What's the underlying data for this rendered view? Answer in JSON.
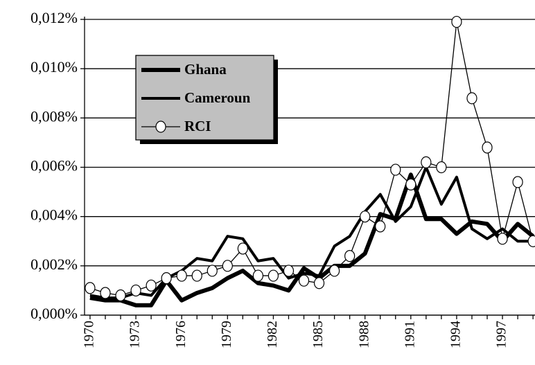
{
  "chart_data": {
    "type": "line",
    "x": [
      1970,
      1971,
      1972,
      1973,
      1974,
      1975,
      1976,
      1977,
      1978,
      1979,
      1980,
      1981,
      1982,
      1983,
      1984,
      1985,
      1986,
      1987,
      1988,
      1989,
      1990,
      1991,
      1992,
      1993,
      1994,
      1995,
      1996,
      1997,
      1998,
      1999
    ],
    "series": [
      {
        "name": "Ghana",
        "color": "#000000",
        "values": [
          0.0007,
          0.0006,
          0.0006,
          0.0004,
          0.0004,
          0.0014,
          0.0006,
          0.0009,
          0.0011,
          0.0015,
          0.0018,
          0.0013,
          0.0012,
          0.001,
          0.0019,
          0.0015,
          0.002,
          0.002,
          0.0025,
          0.0041,
          0.0039,
          0.0057,
          0.0039,
          0.0039,
          0.0033,
          0.0038,
          0.0037,
          0.003,
          0.0037,
          0.0032
        ]
      },
      {
        "name": "Cameroun",
        "color": "#000000",
        "values": [
          0.0008,
          0.0007,
          0.0007,
          0.0009,
          0.0008,
          0.0015,
          0.0018,
          0.0023,
          0.0022,
          0.0032,
          0.0031,
          0.0022,
          0.0023,
          0.0015,
          0.0017,
          0.0016,
          0.0028,
          0.0032,
          0.0042,
          0.0049,
          0.0038,
          0.0044,
          0.006,
          0.0045,
          0.0056,
          0.0035,
          0.0031,
          0.0035,
          0.003,
          0.003
        ]
      },
      {
        "name": "RCI",
        "color": "#000000",
        "marker": "circle",
        "values": [
          0.0011,
          0.0009,
          0.0008,
          0.001,
          0.0012,
          0.0015,
          0.0016,
          0.0016,
          0.0018,
          0.002,
          0.0027,
          0.0016,
          0.0016,
          0.0018,
          0.0014,
          0.0013,
          0.0018,
          0.0024,
          0.004,
          0.0036,
          0.0059,
          0.0053,
          0.0062,
          0.006,
          0.0119,
          0.0088,
          0.0068,
          0.0031,
          0.0054,
          0.003
        ]
      }
    ],
    "xlim": [
      1969.64,
      1999.13
    ],
    "xticks": [
      1970,
      1973,
      1976,
      1979,
      1982,
      1985,
      1988,
      1991,
      1994,
      1997
    ],
    "ylim": [
      0,
      0.012
    ],
    "yticks": [
      {
        "value": 0,
        "label": "0,000%"
      },
      {
        "value": 0.002,
        "label": "0,002%"
      },
      {
        "value": 0.004,
        "label": "0,004%"
      },
      {
        "value": 0.006,
        "label": "0,006%"
      },
      {
        "value": 0.008,
        "label": "0,008%"
      },
      {
        "value": 0.01,
        "label": "0,010%"
      },
      {
        "value": 0.012,
        "label": "0,012%"
      }
    ],
    "grid": true,
    "legend": "upper left"
  }
}
